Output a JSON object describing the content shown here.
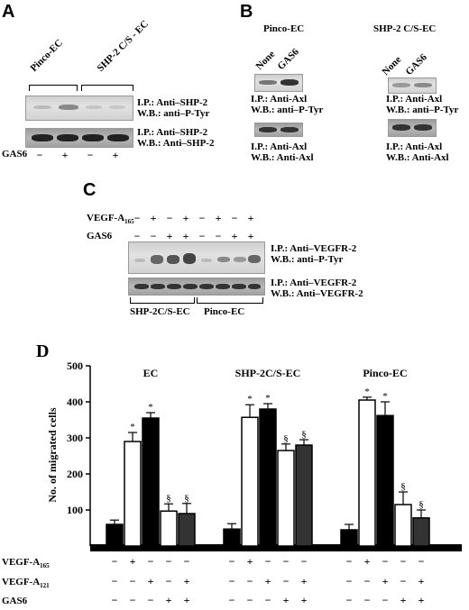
{
  "panelA": {
    "letter": "A",
    "groups": [
      "Pinco-EC",
      "SHP-2 C/S - EC"
    ],
    "blot1": [
      "I.P.: Anti–SHP-2",
      "W.B.: anti–P-Tyr"
    ],
    "blot2": [
      "I.P.: Anti–SHP-2",
      "W.B.: Anti–SHP-2"
    ],
    "treatment_label": "GAS6",
    "signs": [
      "−",
      "+",
      "−",
      "+"
    ]
  },
  "panelB": {
    "letter": "B",
    "left_title": "Pinco-EC",
    "right_title": "SHP-2 C/S-EC",
    "lanes": [
      "None",
      "GAS6"
    ],
    "blot1": [
      "I.P.: Anti-Axl",
      "W.B.: anti–P-Tyr"
    ],
    "blot2": [
      "I.P.: Anti-Axl",
      "W.B.: Anti-Axl"
    ]
  },
  "panelC": {
    "letter": "C",
    "row1_label": "VEGF-A",
    "row1_sub": "165",
    "row1_signs": [
      "−",
      "+",
      "−",
      "+",
      "−",
      "+",
      "−",
      "+"
    ],
    "row2_label": "GAS6",
    "row2_signs": [
      "−",
      "−",
      "+",
      "+",
      "−",
      "−",
      "+",
      "+"
    ],
    "blot1": [
      "I.P.: Anti–VEGFR-2",
      "W.B.: anti–P-Tyr"
    ],
    "blot2": [
      "I.P.: Anti–VEGFR-2",
      "W.B.: Anti–VEGFR-2"
    ],
    "groups": [
      "SHP-2C/S-EC",
      "Pinco-EC"
    ]
  },
  "chart_data": {
    "type": "bar",
    "panel_letter": "D",
    "ylabel": "No. of migrated cells",
    "ylim": [
      0,
      500
    ],
    "yticks": [
      "500",
      "400",
      "300",
      "200",
      "100"
    ],
    "groups": [
      {
        "name": "EC",
        "values": [
          60,
          290,
          355,
          97,
          90
        ],
        "errors": [
          12,
          25,
          15,
          20,
          28
        ],
        "marks": [
          "",
          "*",
          "*",
          "§",
          "§"
        ]
      },
      {
        "name": "SHP-2C/S-EC",
        "values": [
          47,
          357,
          380,
          265,
          280
        ],
        "errors": [
          15,
          35,
          15,
          18,
          15
        ],
        "marks": [
          "",
          "*",
          "*",
          "§",
          "§"
        ]
      },
      {
        "name": "Pinco-EC",
        "values": [
          45,
          405,
          362,
          115,
          78
        ],
        "errors": [
          15,
          8,
          38,
          35,
          22
        ],
        "marks": [
          "",
          "*",
          "*",
          "§",
          "§"
        ]
      }
    ],
    "bar_fills": [
      "#000000",
      "#ffffff",
      "#000000",
      "#ffffff",
      "#333333"
    ],
    "treatments": [
      {
        "label": "VEGF-A",
        "sub": "165",
        "signs": [
          "−",
          "+",
          "−",
          "−",
          "−"
        ]
      },
      {
        "label": "VEGF-A",
        "sub": "121",
        "signs": [
          "−",
          "−",
          "+",
          "−",
          "+"
        ]
      },
      {
        "label": "GAS6",
        "sub": "",
        "signs": [
          "−",
          "−",
          "−",
          "+",
          "+"
        ]
      }
    ]
  }
}
